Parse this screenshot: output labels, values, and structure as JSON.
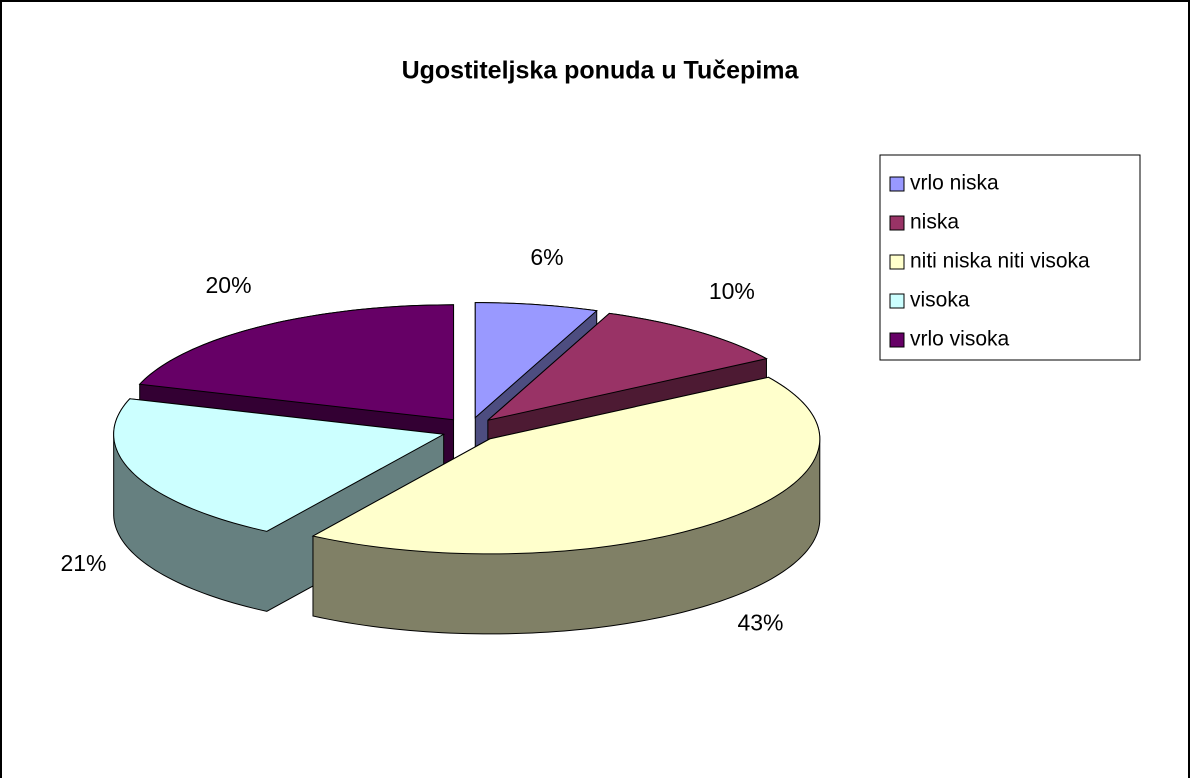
{
  "chart_data": {
    "type": "pie",
    "title": "Ugostiteljska ponuda u Tučepima",
    "categories": [
      "vrlo niska",
      "niska",
      "niti niska niti visoka",
      "visoka",
      "vrlo visoka"
    ],
    "values": [
      6,
      10,
      43,
      21,
      20
    ],
    "value_labels": [
      "6%",
      "10%",
      "43%",
      "21%",
      "20%"
    ],
    "colors": [
      "#9999ff",
      "#993366",
      "#ffffcc",
      "#ccffff",
      "#660066"
    ],
    "legend": "right"
  }
}
